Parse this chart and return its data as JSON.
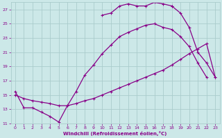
{
  "xlabel": "Windchill (Refroidissement éolien,°C)",
  "background_color": "#cce8e8",
  "grid_color": "#aacccc",
  "line_color": "#880088",
  "xlim": [
    -0.5,
    23.5
  ],
  "ylim": [
    11,
    28
  ],
  "yticks": [
    11,
    13,
    15,
    17,
    19,
    21,
    23,
    25,
    27
  ],
  "xticks": [
    0,
    1,
    2,
    3,
    4,
    5,
    6,
    7,
    8,
    9,
    10,
    11,
    12,
    13,
    14,
    15,
    16,
    17,
    18,
    19,
    20,
    21,
    22,
    23
  ],
  "curve_A_x": [
    0,
    1,
    2,
    3,
    4,
    5,
    6,
    7,
    8,
    9,
    10,
    11,
    12,
    13,
    14,
    15,
    16,
    17,
    18,
    19,
    20,
    21,
    22
  ],
  "curve_A_y": [
    15.5,
    13.2,
    13.2,
    12.6,
    12.0,
    11.2,
    13.5,
    15.5,
    17.8,
    19.2,
    20.8,
    22.0,
    23.2,
    23.8,
    24.3,
    24.8,
    25.0,
    24.5,
    24.2,
    23.2,
    21.8,
    19.5,
    17.5
  ],
  "curve_B_x": [
    10,
    11,
    12,
    13,
    14,
    15,
    16,
    17,
    18
  ],
  "curve_B_y": [
    26.2,
    26.5,
    27.5,
    27.8,
    27.5,
    27.5,
    28.0,
    27.8,
    27.5
  ],
  "curve_C_x": [
    0,
    1,
    2,
    3,
    4,
    5,
    6,
    7,
    8,
    9,
    10,
    11,
    12,
    13,
    14,
    15,
    16,
    17,
    18,
    19,
    20,
    21,
    22,
    23
  ],
  "curve_C_y": [
    15.0,
    14.5,
    14.2,
    14.0,
    13.8,
    13.5,
    13.5,
    13.8,
    14.2,
    14.5,
    15.0,
    15.5,
    16.0,
    16.5,
    17.0,
    17.5,
    18.0,
    18.5,
    19.2,
    20.0,
    20.8,
    21.5,
    22.2,
    17.5
  ],
  "curve_D_x": [
    18,
    19,
    20,
    21,
    22,
    23
  ],
  "curve_D_y": [
    27.5,
    26.5,
    24.5,
    21.0,
    19.5,
    17.5
  ]
}
